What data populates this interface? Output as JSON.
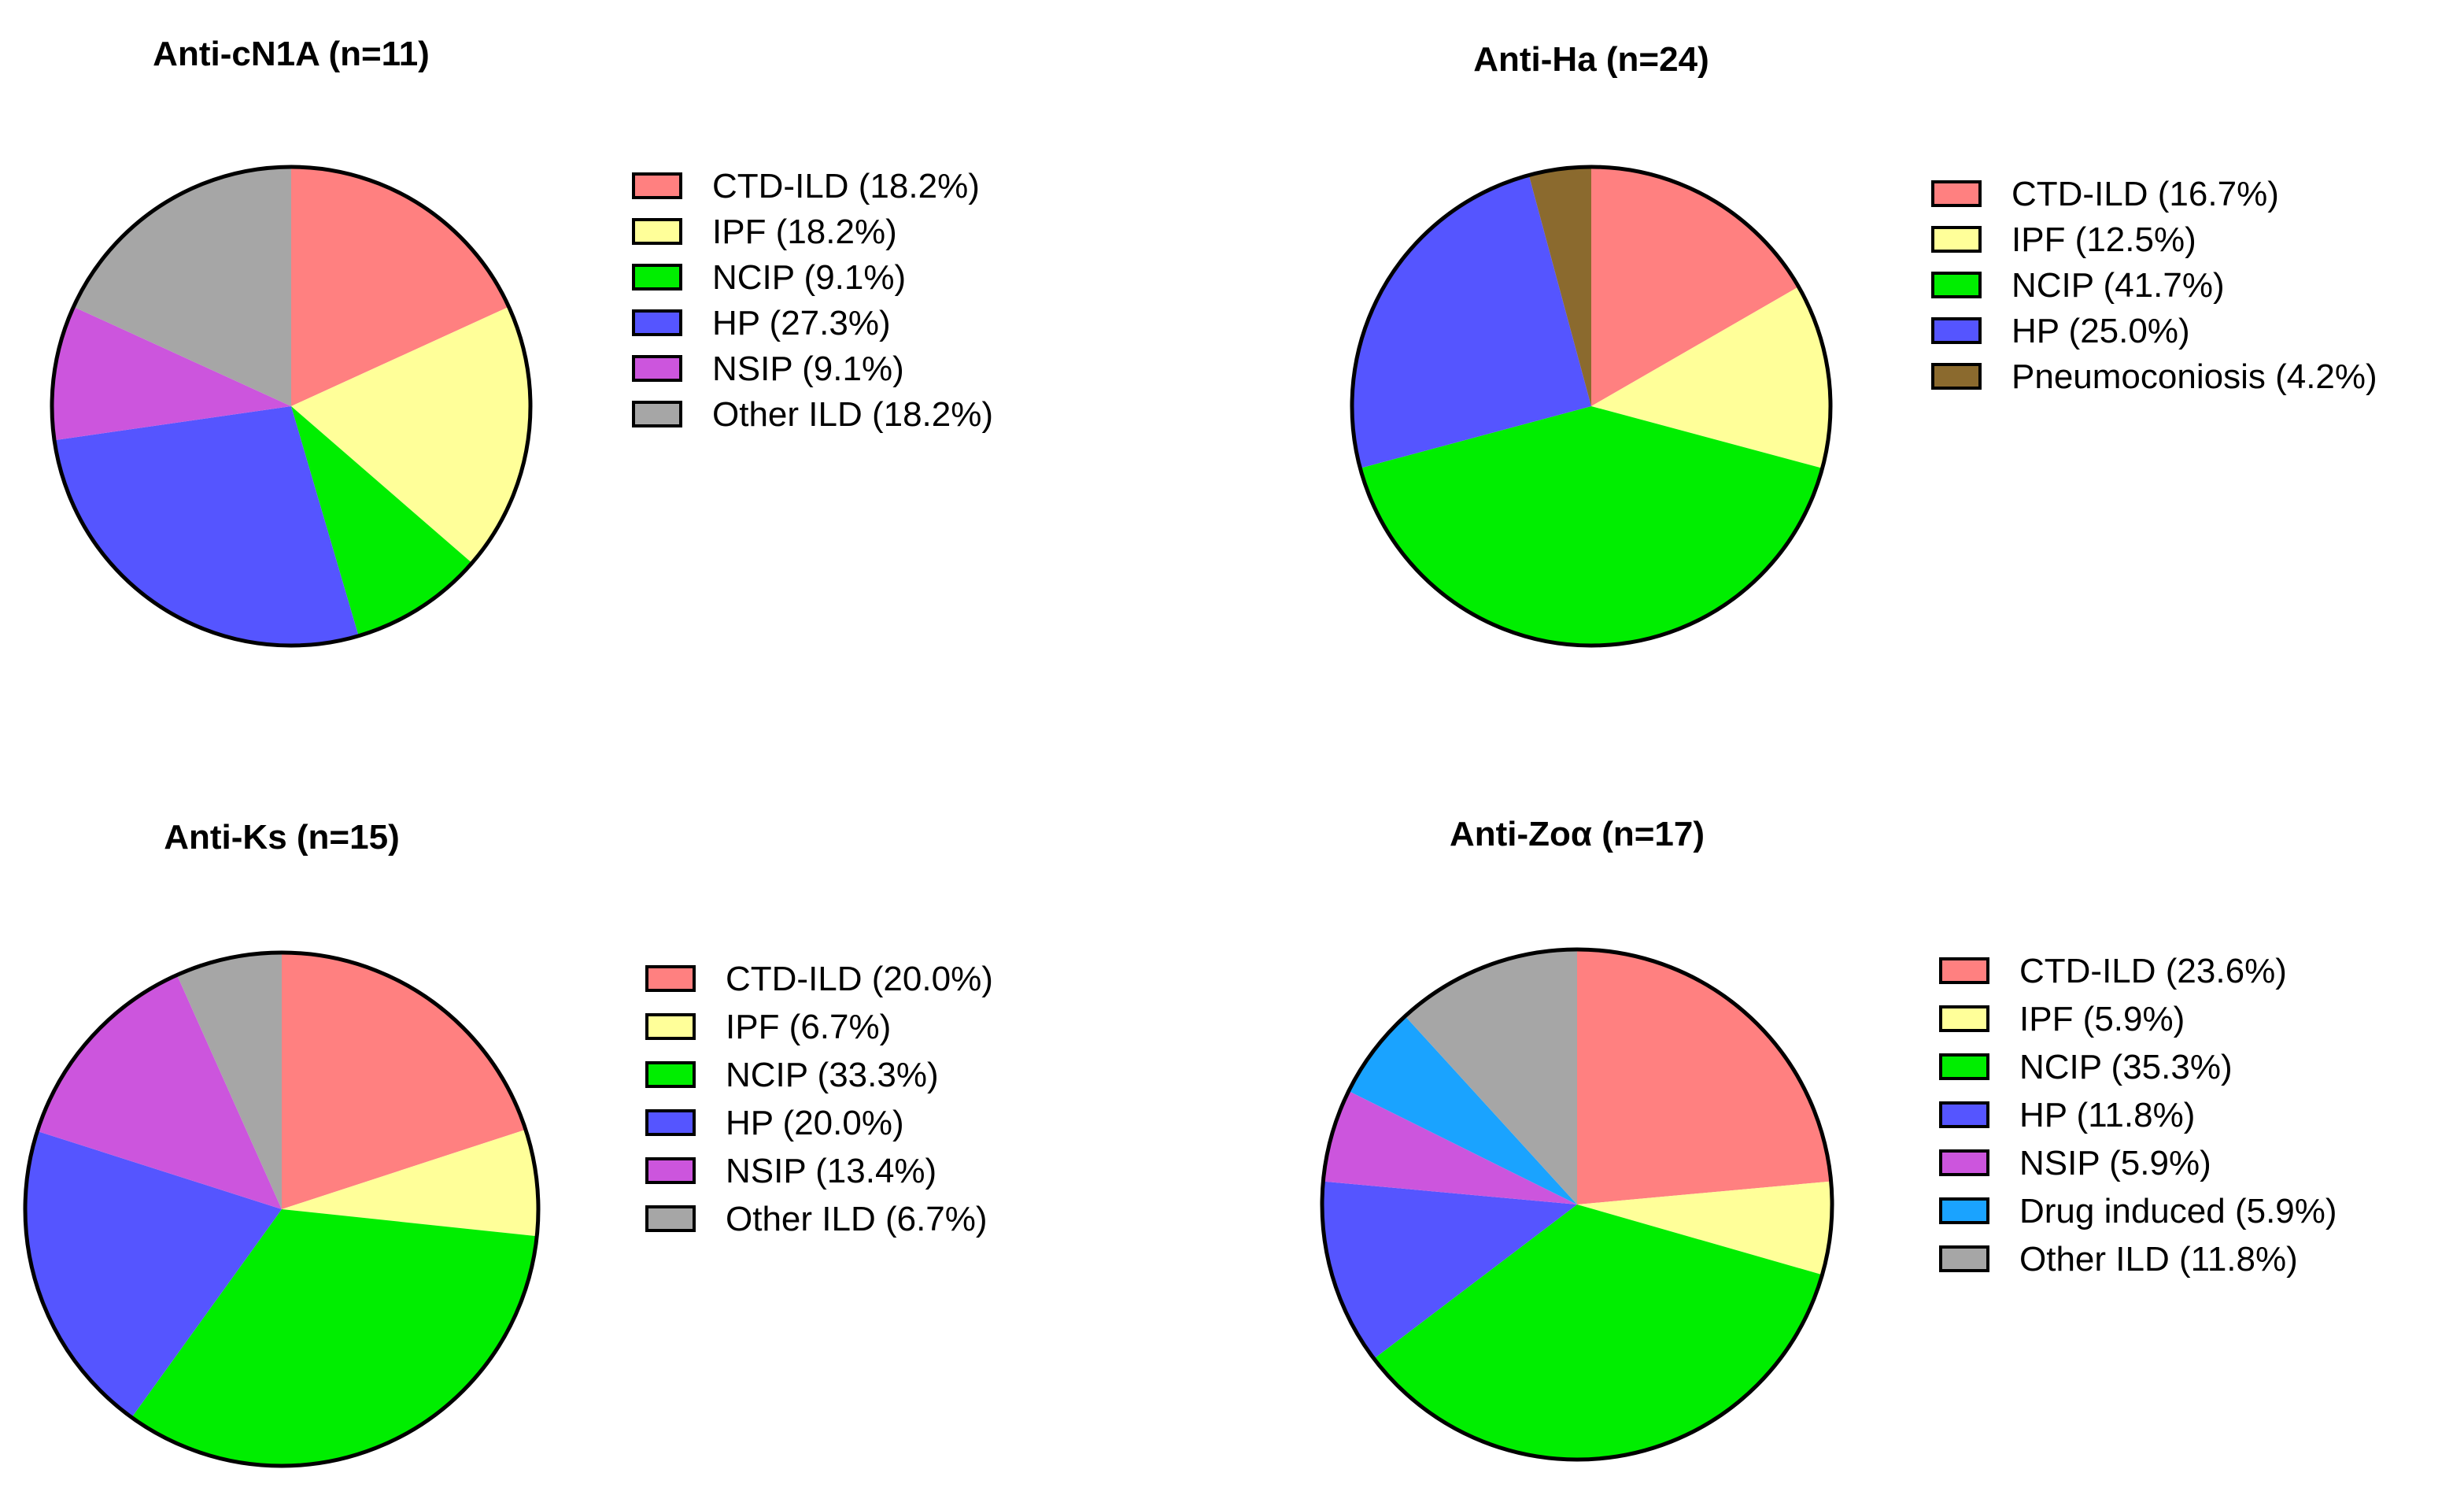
{
  "chart_data": [
    {
      "type": "pie",
      "title": "Anti-cN1A (n=11)",
      "slices": [
        {
          "label": "CTD-ILD (18.2%)",
          "value": 18.2,
          "color": "#ff8080"
        },
        {
          "label": "IPF (18.2%)",
          "value": 18.2,
          "color": "#ffff99"
        },
        {
          "label": "NCIP (9.1%)",
          "value": 9.1,
          "color": "#00ee00"
        },
        {
          "label": "HP (27.3%)",
          "value": 27.3,
          "color": "#5555ff"
        },
        {
          "label": "NSIP (9.1%)",
          "value": 9.1,
          "color": "#cc55dd"
        },
        {
          "label": "Other ILD (18.2%)",
          "value": 18.2,
          "color": "#a6a6a6"
        }
      ]
    },
    {
      "type": "pie",
      "title": "Anti-Ha (n=24)",
      "slices": [
        {
          "label": "CTD-ILD  (16.7%)",
          "value": 16.7,
          "color": "#ff8080"
        },
        {
          "label": "IPF (12.5%)",
          "value": 12.5,
          "color": "#ffff99"
        },
        {
          "label": "NCIP (41.7%)",
          "value": 41.7,
          "color": "#00ee00"
        },
        {
          "label": "HP (25.0%)",
          "value": 25.0,
          "color": "#5555ff"
        },
        {
          "label": "Pneumoconiosis (4.2%)",
          "value": 4.2,
          "color": "#8b6a2e"
        }
      ]
    },
    {
      "type": "pie",
      "title": "Anti-Ks (n=15)",
      "slices": [
        {
          "label": "CTD-ILD (20.0%)",
          "value": 20.0,
          "color": "#ff8080"
        },
        {
          "label": "IPF (6.7%)",
          "value": 6.7,
          "color": "#ffff99"
        },
        {
          "label": "NCIP (33.3%)",
          "value": 33.3,
          "color": "#00ee00"
        },
        {
          "label": "HP (20.0%)",
          "value": 20.0,
          "color": "#5555ff"
        },
        {
          "label": "NSIP (13.4%)",
          "value": 13.4,
          "color": "#cc55dd"
        },
        {
          "label": "Other ILD (6.7%)",
          "value": 6.7,
          "color": "#a6a6a6"
        }
      ]
    },
    {
      "type": "pie",
      "title": "Anti-Zoα (n=17)",
      "slices": [
        {
          "label": "CTD-ILD (23.6%)",
          "value": 23.6,
          "color": "#ff8080"
        },
        {
          "label": "IPF (5.9%)",
          "value": 5.9,
          "color": "#ffff99"
        },
        {
          "label": "NCIP (35.3%)",
          "value": 35.3,
          "color": "#00ee00"
        },
        {
          "label": "HP (11.8%)",
          "value": 11.8,
          "color": "#5555ff"
        },
        {
          "label": "NSIP (5.9%)",
          "value": 5.9,
          "color": "#cc55dd"
        },
        {
          "label": "Drug induced (5.9%)",
          "value": 5.9,
          "color": "#1aa3ff"
        },
        {
          "label": "Other ILD (11.8%)",
          "value": 11.8,
          "color": "#a6a6a6"
        }
      ]
    }
  ]
}
